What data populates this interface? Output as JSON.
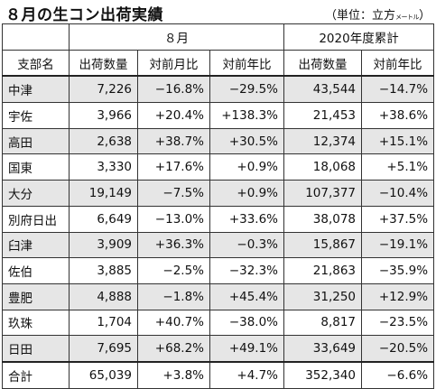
{
  "title": "８月の生コン出荷実績",
  "unit": {
    "prefix": "（単位：立方",
    "small": "メートル",
    "suffix": "）"
  },
  "groups": {
    "month": "８月",
    "ytd": "2020年度累計"
  },
  "columns": {
    "region": "支部名",
    "month_qty": "出荷数量",
    "month_mom": "対前月比",
    "month_yoy": "対前年比",
    "ytd_qty": "出荷数量",
    "ytd_yoy": "対前年比"
  },
  "rows": [
    {
      "name": "中津",
      "qty": "7,226",
      "mom": "−16.8%",
      "yoy": "−29.5%",
      "ytd_qty": "43,544",
      "ytd_yoy": "−14.7%"
    },
    {
      "name": "宇佐",
      "qty": "3,966",
      "mom": "+20.4%",
      "yoy": "+138.3%",
      "ytd_qty": "21,453",
      "ytd_yoy": "+38.6%"
    },
    {
      "name": "高田",
      "qty": "2,638",
      "mom": "+38.7%",
      "yoy": "+30.5%",
      "ytd_qty": "12,374",
      "ytd_yoy": "+15.1%"
    },
    {
      "name": "国東",
      "qty": "3,330",
      "mom": "+17.6%",
      "yoy": "+0.9%",
      "ytd_qty": "18,068",
      "ytd_yoy": "+5.1%"
    },
    {
      "name": "大分",
      "qty": "19,149",
      "mom": "−7.5%",
      "yoy": "+0.9%",
      "ytd_qty": "107,377",
      "ytd_yoy": "−10.4%"
    },
    {
      "name": "別府日出",
      "qty": "6,649",
      "mom": "−13.0%",
      "yoy": "+33.6%",
      "ytd_qty": "38,078",
      "ytd_yoy": "+37.5%"
    },
    {
      "name": "臼津",
      "qty": "3,909",
      "mom": "+36.3%",
      "yoy": "−0.3%",
      "ytd_qty": "15,867",
      "ytd_yoy": "−19.1%"
    },
    {
      "name": "佐伯",
      "qty": "3,885",
      "mom": "−2.5%",
      "yoy": "−32.3%",
      "ytd_qty": "21,863",
      "ytd_yoy": "−35.9%"
    },
    {
      "name": "豊肥",
      "qty": "4,888",
      "mom": "−1.8%",
      "yoy": "+45.4%",
      "ytd_qty": "31,250",
      "ytd_yoy": "+12.9%"
    },
    {
      "name": "玖珠",
      "qty": "1,704",
      "mom": "+40.7%",
      "yoy": "−38.0%",
      "ytd_qty": "8,817",
      "ytd_yoy": "−23.5%"
    },
    {
      "name": "日田",
      "qty": "7,695",
      "mom": "+68.2%",
      "yoy": "+49.1%",
      "ytd_qty": "33,649",
      "ytd_yoy": "−20.5%"
    }
  ],
  "total": {
    "name": "合計",
    "qty": "65,039",
    "mom": "+3.8%",
    "yoy": "+4.7%",
    "ytd_qty": "352,340",
    "ytd_yoy": "−6.6%"
  }
}
